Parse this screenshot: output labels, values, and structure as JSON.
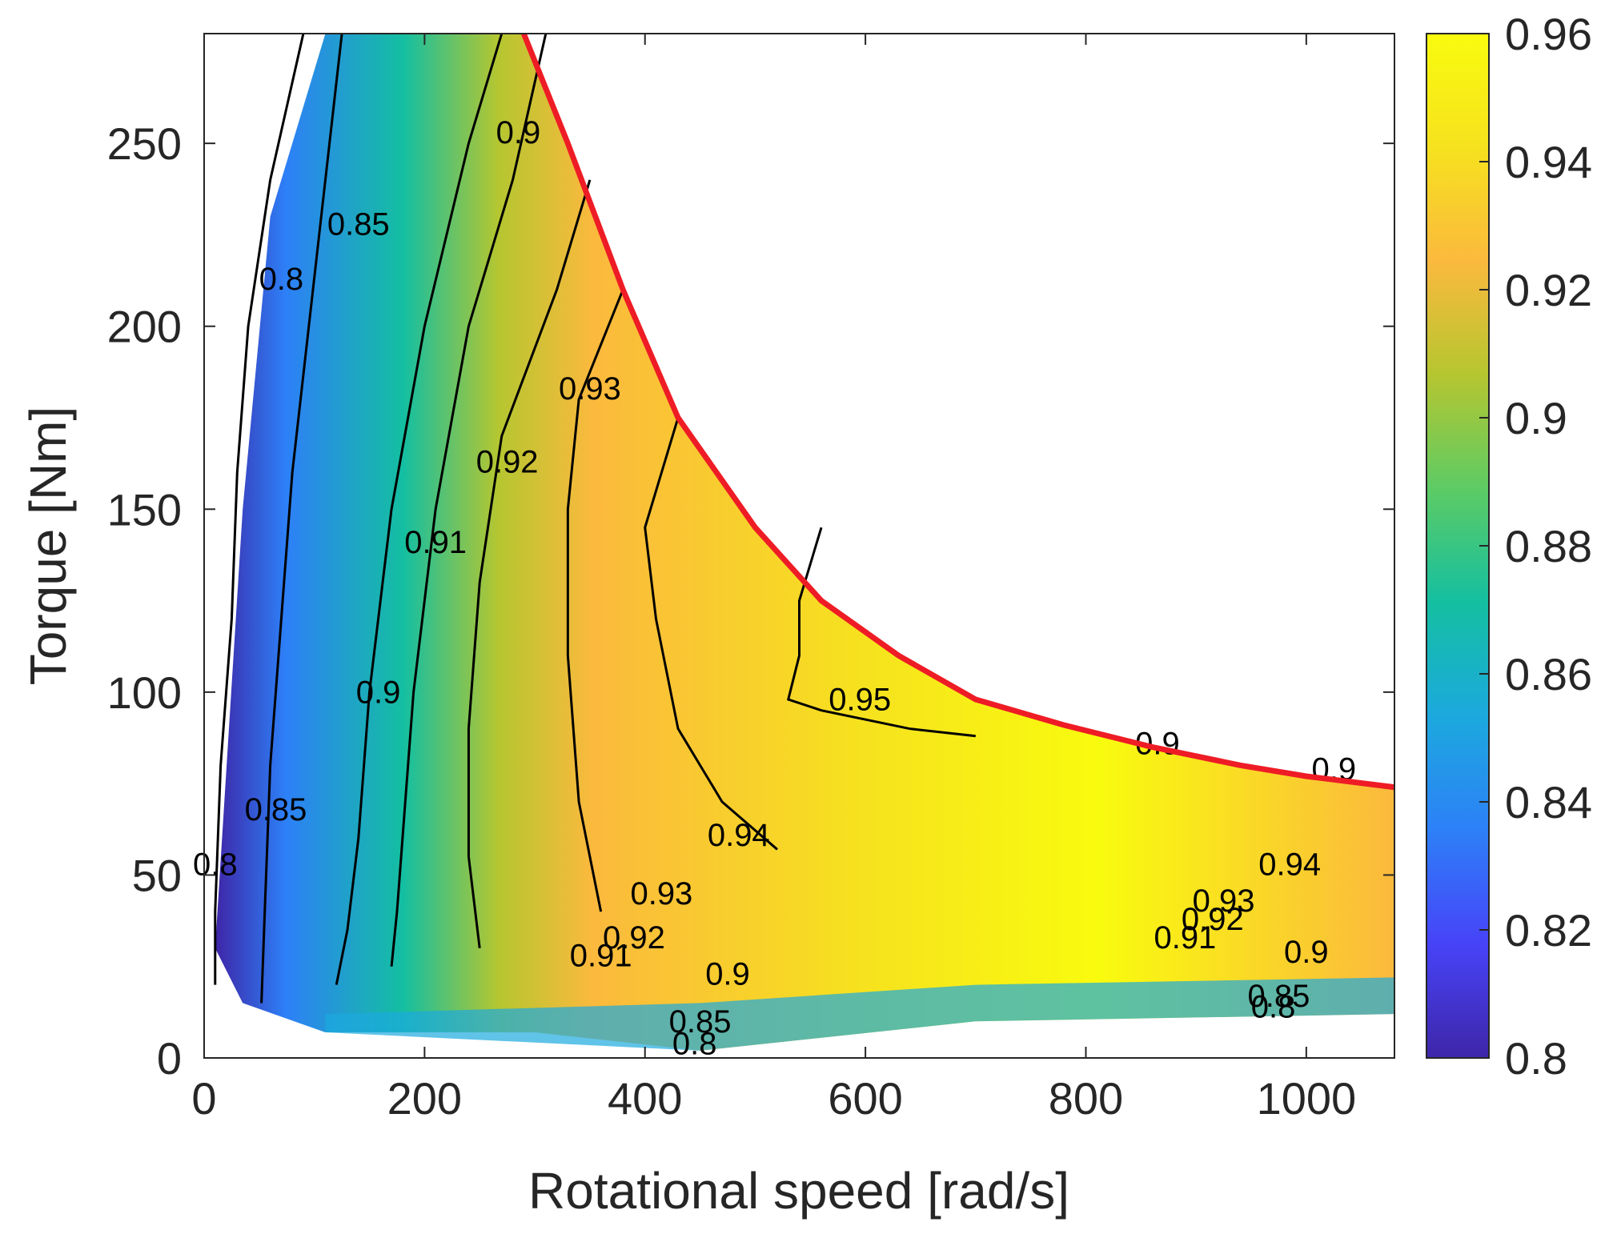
{
  "chart_data": {
    "type": "contour",
    "title": "",
    "xlabel": "Rotational speed [rad/s]",
    "ylabel": "Torque [Nm]",
    "xlim": [
      0,
      1080
    ],
    "ylim": [
      0,
      280
    ],
    "xticks": [
      0,
      200,
      400,
      600,
      800,
      1000
    ],
    "xtick_labels": [
      "0",
      "200",
      "400",
      "600",
      "800",
      "1000"
    ],
    "yticks": [
      0,
      50,
      100,
      150,
      200,
      250
    ],
    "ytick_labels": [
      "0",
      "50",
      "100",
      "150",
      "200",
      "250"
    ],
    "colorbar": {
      "range": [
        0.8,
        0.96
      ],
      "ticks": [
        0.8,
        0.82,
        0.84,
        0.86,
        0.88,
        0.9,
        0.92,
        0.94,
        0.96
      ],
      "tick_labels": [
        "0.8",
        "0.82",
        "0.84",
        "0.86",
        "0.88",
        "0.9",
        "0.92",
        "0.94",
        "0.96"
      ],
      "colormap": "parula",
      "colormap_stops": [
        "#3e26a8",
        "#4743f8",
        "#2d80f7",
        "#1ca9de",
        "#14bfa1",
        "#5dcb64",
        "#b5c630",
        "#fbb93d",
        "#f6e21e",
        "#f9fb0e"
      ]
    },
    "max_torque_curve": {
      "color": "#ee1c25",
      "x": [
        290,
        330,
        380,
        430,
        500,
        560,
        630,
        700,
        780,
        860,
        940,
        1000,
        1080
      ],
      "y": [
        280,
        250,
        210,
        175,
        145,
        125,
        110,
        98,
        91,
        85,
        80,
        77,
        74
      ]
    },
    "contour_levels": [
      {
        "value": "0.8",
        "x": [
          90,
          60,
          40,
          30,
          25,
          15,
          10,
          10
        ],
        "y": [
          280,
          240,
          200,
          160,
          120,
          80,
          40,
          20
        ]
      },
      {
        "value": "0.85",
        "x": [
          125,
          110,
          95,
          80,
          70,
          60,
          55,
          52
        ],
        "y": [
          280,
          240,
          200,
          160,
          120,
          80,
          40,
          15
        ]
      },
      {
        "value": "0.9",
        "x": [
          270,
          240,
          200,
          170,
          150,
          140,
          130,
          120
        ],
        "y": [
          280,
          250,
          200,
          150,
          100,
          60,
          35,
          20
        ]
      },
      {
        "value": "0.91",
        "x": [
          310,
          280,
          240,
          210,
          190,
          180,
          175,
          170
        ],
        "y": [
          280,
          240,
          200,
          150,
          100,
          60,
          40,
          25
        ]
      },
      {
        "value": "0.92",
        "x": [
          350,
          320,
          270,
          250,
          240,
          240,
          250
        ],
        "y": [
          240,
          210,
          170,
          130,
          90,
          55,
          30
        ]
      },
      {
        "value": "0.93",
        "x": [
          380,
          340,
          330,
          330,
          340,
          360
        ],
        "y": [
          210,
          180,
          150,
          110,
          70,
          40
        ]
      },
      {
        "value": "0.94",
        "x": [
          430,
          400,
          410,
          430,
          470,
          520
        ],
        "y": [
          175,
          145,
          120,
          90,
          70,
          57
        ]
      },
      {
        "value": "0.95",
        "x": [
          560,
          540,
          540,
          530,
          560,
          640,
          700
        ],
        "y": [
          145,
          125,
          110,
          98,
          95,
          90,
          88
        ]
      }
    ],
    "contour_labels": [
      {
        "text": "0.8",
        "x": 70,
        "y": 210
      },
      {
        "text": "0.85",
        "x": 140,
        "y": 225
      },
      {
        "text": "0.9",
        "x": 285,
        "y": 250
      },
      {
        "text": "0.93",
        "x": 350,
        "y": 180
      },
      {
        "text": "0.92",
        "x": 275,
        "y": 160
      },
      {
        "text": "0.91",
        "x": 210,
        "y": 138
      },
      {
        "text": "0.9",
        "x": 158,
        "y": 97
      },
      {
        "text": "0.85",
        "x": 65,
        "y": 65
      },
      {
        "text": "0.8",
        "x": 10,
        "y": 50
      },
      {
        "text": "0.95",
        "x": 595,
        "y": 95
      },
      {
        "text": "0.94",
        "x": 485,
        "y": 58
      },
      {
        "text": "0.93",
        "x": 415,
        "y": 42
      },
      {
        "text": "0.92",
        "x": 390,
        "y": 30
      },
      {
        "text": "0.91",
        "x": 360,
        "y": 25
      },
      {
        "text": "0.9",
        "x": 475,
        "y": 20
      },
      {
        "text": "0.85",
        "x": 450,
        "y": 7
      },
      {
        "text": "0.8",
        "x": 445,
        "y": 1
      },
      {
        "text": "0.9",
        "x": 865,
        "y": 83
      },
      {
        "text": "0.9",
        "x": 1025,
        "y": 76
      },
      {
        "text": "0.94",
        "x": 985,
        "y": 50
      },
      {
        "text": "0.93",
        "x": 925,
        "y": 40
      },
      {
        "text": "0.92",
        "x": 915,
        "y": 35
      },
      {
        "text": "0.91",
        "x": 890,
        "y": 30
      },
      {
        "text": "0.9",
        "x": 1000,
        "y": 26
      },
      {
        "text": "0.85",
        "x": 975,
        "y": 14
      },
      {
        "text": "0.8",
        "x": 970,
        "y": 11
      }
    ]
  }
}
